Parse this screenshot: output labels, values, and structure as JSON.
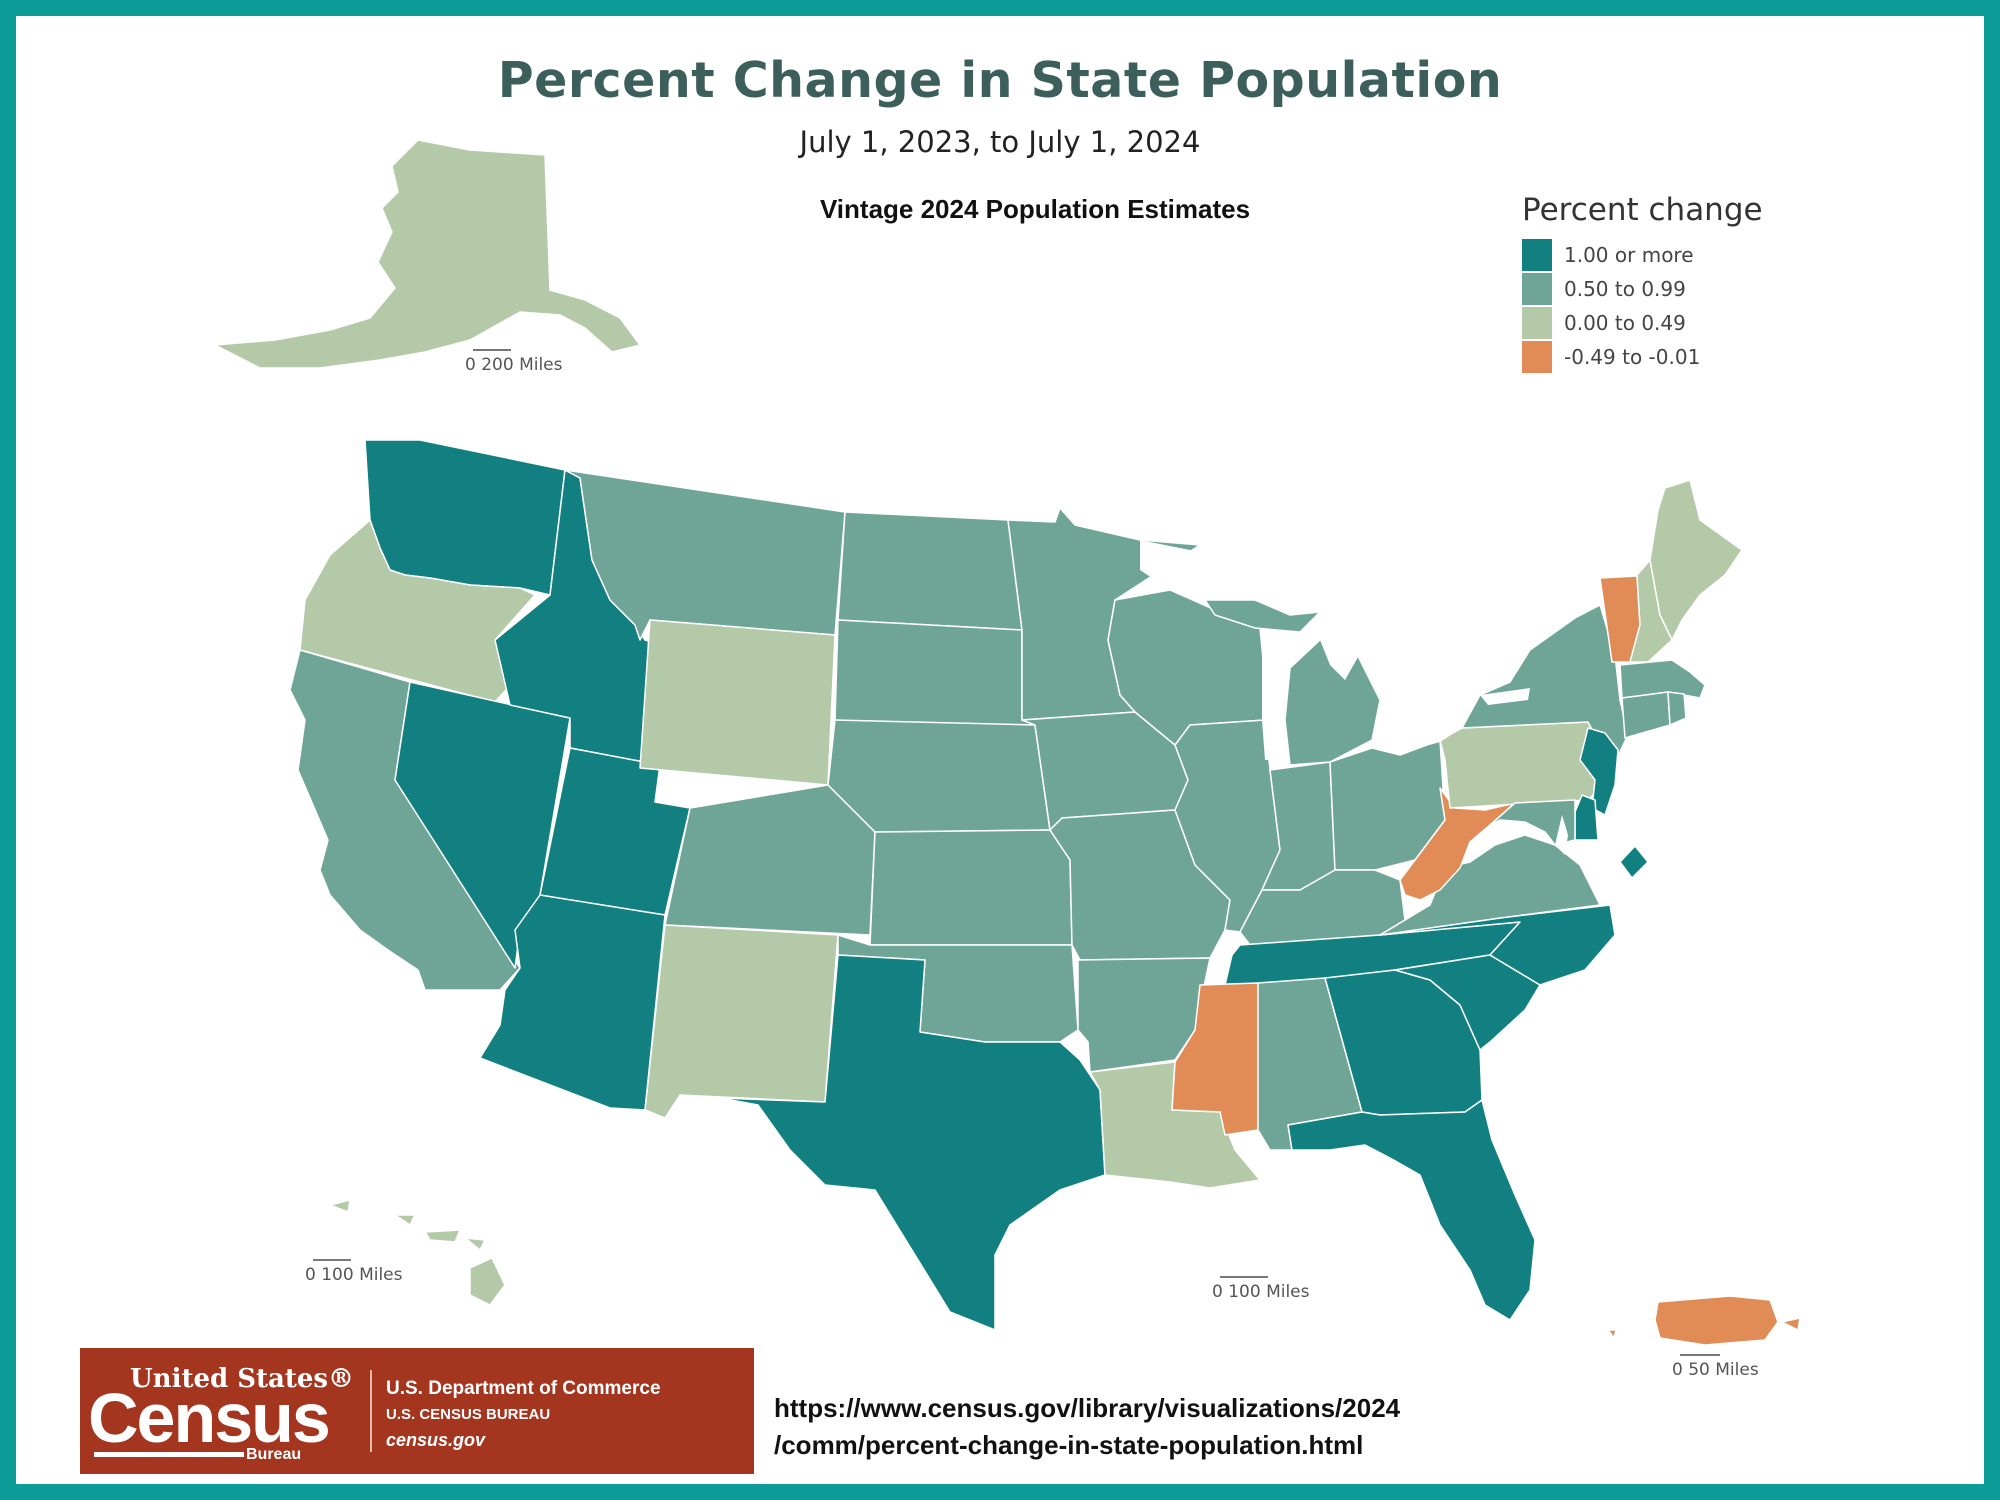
{
  "title": "Percent Change in State Population",
  "subtitle": "July 1, 2023, to July 1, 2024",
  "vintage": "Vintage 2024 Population Estimates",
  "colors": {
    "frame": "#0e9c98",
    "c1": "#128080",
    "c2": "#6fa597",
    "c3": "#b3c9a8",
    "c4": "#e18b57"
  },
  "legend": {
    "title": "Percent change",
    "items": [
      {
        "label": "1.00 or more",
        "color": "#128080"
      },
      {
        "label": "0.50 to 0.99",
        "color": "#6fa597"
      },
      {
        "label": "0.00 to 0.49",
        "color": "#b3c9a8"
      },
      {
        "label": "-0.49 to -0.01",
        "color": "#e18b57"
      }
    ]
  },
  "scales": {
    "alaska": "0    200 Miles",
    "hawaii": "0    100 Miles",
    "conus": "0    100 Miles",
    "puerto_rico": "0    50 Miles"
  },
  "states": {
    "WA": "1.00 or more",
    "OR": "0.00 to 0.49",
    "CA": "0.50 to 0.99",
    "NV": "1.00 or more",
    "ID": "1.00 or more",
    "UT": "1.00 or more",
    "AZ": "1.00 or more",
    "MT": "0.50 to 0.99",
    "WY": "0.00 to 0.49",
    "CO": "0.50 to 0.99",
    "NM": "0.00 to 0.49",
    "ND": "0.50 to 0.99",
    "SD": "0.50 to 0.99",
    "NE": "0.50 to 0.99",
    "KS": "0.50 to 0.99",
    "OK": "0.50 to 0.99",
    "TX": "1.00 or more",
    "MN": "0.50 to 0.99",
    "IA": "0.50 to 0.99",
    "MO": "0.50 to 0.99",
    "AR": "0.50 to 0.99",
    "LA": "0.00 to 0.49",
    "WI": "0.50 to 0.99",
    "IL": "0.50 to 0.99",
    "MS": "-0.49 to -0.01",
    "AL": "0.50 to 0.99",
    "TN": "1.00 or more",
    "KY": "0.50 to 0.99",
    "IN": "0.50 to 0.99",
    "MI": "0.50 to 0.99",
    "OH": "0.50 to 0.99",
    "WV": "-0.49 to -0.01",
    "VA": "0.50 to 0.99",
    "NC": "1.00 or more",
    "SC": "1.00 or more",
    "GA": "1.00 or more",
    "FL": "1.00 or more",
    "PA": "0.00 to 0.49",
    "NY": "0.50 to 0.99",
    "VT": "-0.49 to -0.01",
    "NH": "0.00 to 0.49",
    "ME": "0.00 to 0.49",
    "MA": "0.50 to 0.99",
    "CT": "0.50 to 0.99",
    "RI": "0.50 to 0.99",
    "NJ": "1.00 or more",
    "DE": "1.00 or more",
    "MD": "0.50 to 0.99",
    "DC": "1.00 or more",
    "AK": "0.00 to 0.49",
    "HI": "0.00 to 0.49",
    "PR": "-0.49 to -0.01"
  },
  "logo": {
    "united_states": "United States®",
    "census": "Census",
    "bureau": "Bureau",
    "department": "U.S. Department of Commerce",
    "bureau_line": "U.S. CENSUS BUREAU",
    "site": "census.gov"
  },
  "url": {
    "line1": "https://www.census.gov/library/visualizations/2024",
    "line2": "/comm/percent-change-in-state-population.html"
  }
}
